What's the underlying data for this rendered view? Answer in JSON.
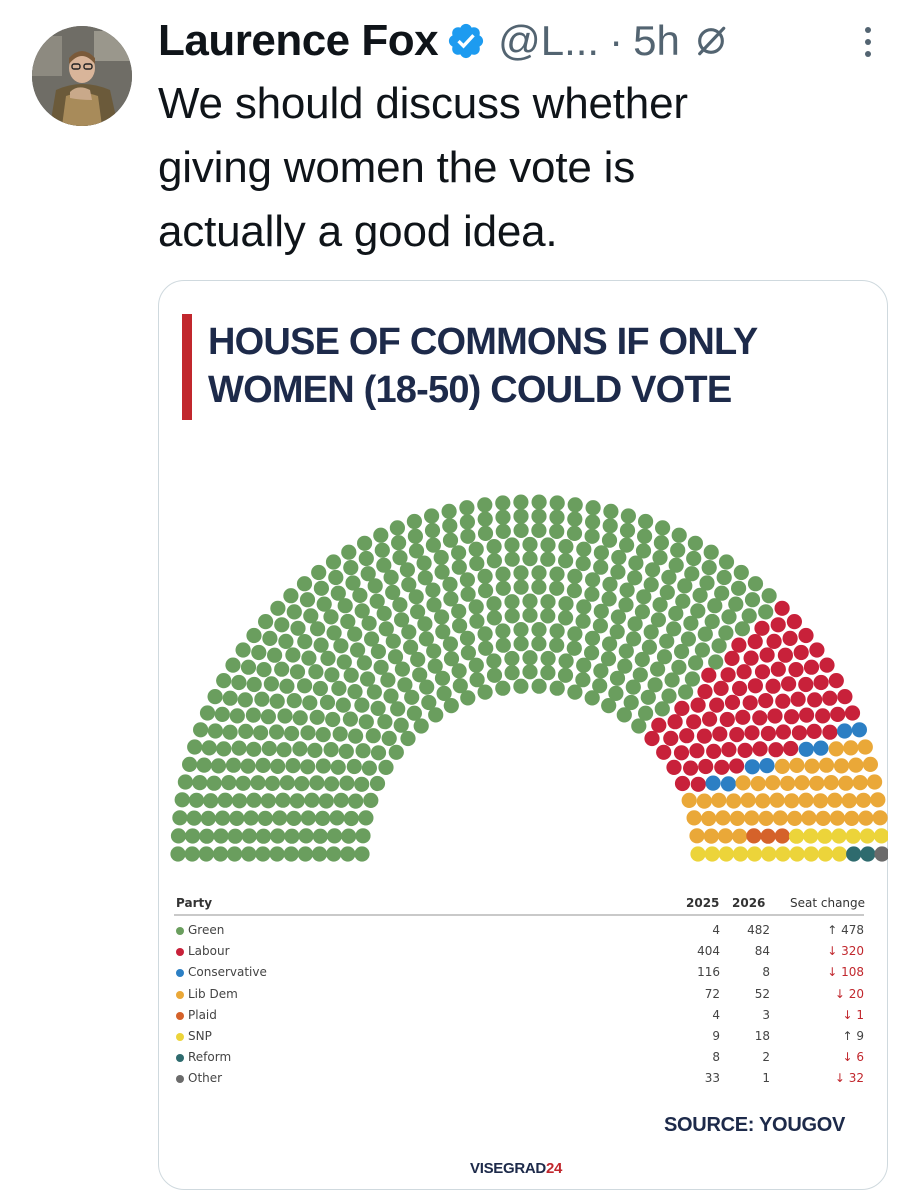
{
  "tweet": {
    "author_name": "Laurence Fox",
    "handle": "@L...",
    "separator": "·",
    "time": "5h",
    "text_lines": [
      "We should discuss whether",
      "giving women the vote is",
      "actually a good idea."
    ],
    "icons": {
      "avatar": "avatar",
      "verified": "verified-badge-icon",
      "grok": "grok-icon",
      "more": "more-options-icon"
    }
  },
  "infographic": {
    "title_lines": [
      "HOUSE OF COMMONS IF ONLY",
      "WOMEN (18-50) COULD VOTE"
    ],
    "source": "SOURCE: YOUGOV",
    "brand_text": "VISEGRAD",
    "brand_number": "24",
    "accent_color": "#c1272d"
  },
  "chart_data": {
    "type": "parliament",
    "title": "HOUSE OF COMMONS IF ONLY WOMEN (18-50) COULD VOTE",
    "columns": [
      "Party",
      "2025",
      "2026",
      "Seat change"
    ],
    "parties": [
      {
        "name": "Green",
        "y2025": "4",
        "y2026": "482",
        "change": "↑ 478",
        "direction": "up",
        "color": "#6a9e5e",
        "seats": 482
      },
      {
        "name": "Labour",
        "y2025": "404",
        "y2026": "84",
        "change": "↓ 320",
        "direction": "down",
        "color": "#c8213a",
        "seats": 84
      },
      {
        "name": "Conservative",
        "y2025": "116",
        "y2026": "8",
        "change": "↓ 108",
        "direction": "down",
        "color": "#2c7fc4",
        "seats": 8
      },
      {
        "name": "Lib Dem",
        "y2025": "72",
        "y2026": "52",
        "change": "↓ 20",
        "direction": "down",
        "color": "#eaa838",
        "seats": 52
      },
      {
        "name": "Plaid",
        "y2025": "4",
        "y2026": "3",
        "change": "↓ 1",
        "direction": "down",
        "color": "#d5622a",
        "seats": 3
      },
      {
        "name": "SNP",
        "y2025": "9",
        "y2026": "18",
        "change": "↑ 9",
        "direction": "up",
        "color": "#ecd43a",
        "seats": 18
      },
      {
        "name": "Reform",
        "y2025": "8",
        "y2026": "2",
        "change": "↓ 6",
        "direction": "down",
        "color": "#2e6b6e",
        "seats": 2
      },
      {
        "name": "Other",
        "y2025": "33",
        "y2026": "1",
        "change": "↓ 32",
        "direction": "down",
        "color": "#6b6b6b",
        "seats": 1
      }
    ]
  }
}
